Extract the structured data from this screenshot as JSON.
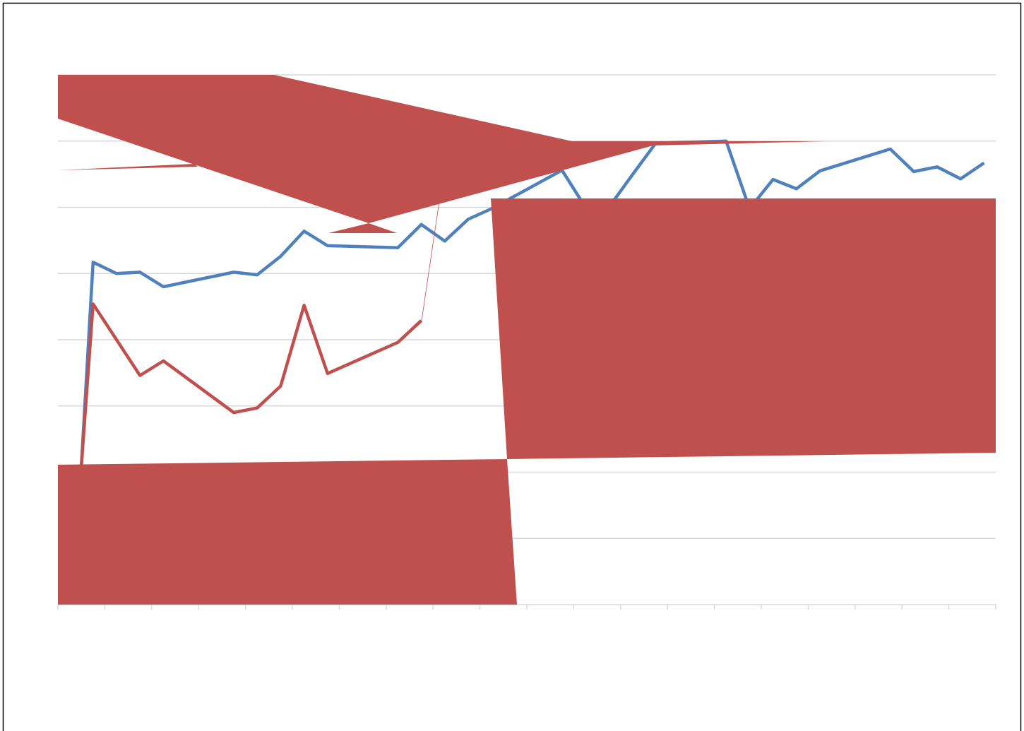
{
  "chart_data": {
    "type": "line",
    "xlim": [
      0,
      40
    ],
    "xticks": [
      0,
      2,
      4,
      6,
      8,
      10,
      12,
      14,
      16,
      18,
      20,
      22,
      24,
      26,
      28,
      30,
      32,
      34,
      36,
      38,
      40
    ],
    "ylim": [
      0,
      8
    ],
    "yticks": [
      0,
      1,
      2,
      3,
      4,
      5,
      6,
      7,
      8
    ],
    "grid": true,
    "series": [
      {
        "color": "#4f81bd",
        "x": [
          1,
          1.5,
          2.5,
          3.5,
          4.5,
          7.5,
          8.5,
          9.5,
          10.5,
          11.5,
          14.5,
          15.5,
          16.5,
          17.5,
          18.5,
          21.5,
          22.5,
          23.5,
          24.5,
          25.5,
          28.5,
          29.5,
          30.5,
          31.5,
          32.5,
          35.5,
          36.5,
          37.5,
          38.5,
          39.5
        ],
        "values": [
          2.09,
          5.17,
          5.0,
          5.02,
          4.8,
          5.02,
          4.98,
          5.26,
          5.64,
          5.42,
          5.39,
          5.74,
          5.49,
          5.82,
          5.98,
          6.56,
          6.0,
          6.0,
          6.49,
          6.97,
          7.0,
          5.98,
          6.42,
          6.28,
          6.55,
          6.88,
          6.54,
          6.61,
          6.43,
          6.67
        ]
      },
      {
        "color": "#c0504d",
        "x": [
          1,
          1.5,
          3.5,
          4.5,
          7.5,
          8.5,
          9.5,
          10.5,
          11.5,
          14.5,
          15.5
        ],
        "values": [
          2.09,
          4.54,
          3.46,
          3.68,
          2.9,
          2.97,
          3.3,
          4.52,
          3.49,
          3.96,
          4.29
        ]
      }
    ]
  }
}
